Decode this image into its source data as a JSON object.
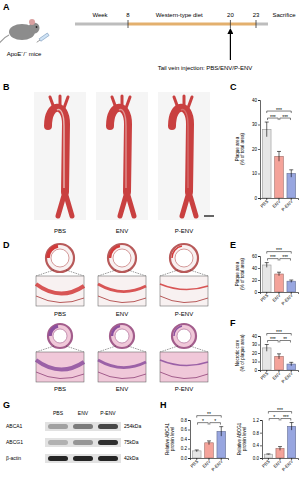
{
  "figure": {
    "panel_labels": [
      "A",
      "B",
      "C",
      "D",
      "E",
      "F",
      "G",
      "H"
    ],
    "schematic": {
      "subject": "ApoE⁻/⁻ mice",
      "axis_label": "Week",
      "weeks": [
        8,
        20,
        23
      ],
      "phase": "Western-type diet",
      "endpoint": "Sacrifice",
      "treatment": "Tail vein injection: PBS/ENV/P-ENV"
    },
    "aorta_groups": [
      "PBS",
      "ENV",
      "P-ENV"
    ],
    "histology_groups": [
      "PBS",
      "ENV",
      "P-ENV"
    ],
    "blot": {
      "groups": [
        "PBS",
        "ENV",
        "P-ENV"
      ],
      "proteins": [
        "ABCA1",
        "ABCG1",
        "β-actin"
      ],
      "sizes": [
        "254kDa",
        "75kDa",
        "42kDa"
      ]
    }
  },
  "chart_data": [
    {
      "type": "bar",
      "y_label": "Plaque area (% of total area)",
      "categories": [
        "PBS",
        "ENV",
        "P-ENV"
      ],
      "values": [
        28,
        17,
        10
      ],
      "errors": [
        3,
        2,
        1.5
      ],
      "colors": [
        "#e6e6e6",
        "#f4a39a",
        "#98a6e0"
      ],
      "ylim": [
        0,
        40
      ],
      "yticks": [
        0,
        10,
        20,
        30,
        40
      ],
      "annotations": [
        {
          "text": "***",
          "between": [
            0,
            1
          ]
        },
        {
          "text": "***",
          "between": [
            1,
            2
          ]
        },
        {
          "text": "***",
          "between": [
            0,
            2
          ]
        }
      ]
    },
    {
      "type": "bar",
      "y_label": "Plaque area (% of total area)",
      "categories": [
        "PBS",
        "ENV",
        "P-ENV"
      ],
      "values": [
        45,
        30,
        18
      ],
      "errors": [
        4,
        3,
        2
      ],
      "colors": [
        "#e6e6e6",
        "#f4a39a",
        "#98a6e0"
      ],
      "ylim": [
        0,
        60
      ],
      "yticks": [
        0,
        20,
        40,
        60
      ],
      "annotations": [
        {
          "text": "***",
          "between": [
            0,
            1
          ]
        },
        {
          "text": "***",
          "between": [
            1,
            2
          ]
        },
        {
          "text": "***",
          "between": [
            0,
            2
          ]
        }
      ]
    },
    {
      "type": "bar",
      "y_label": "Necrotic core (% of plaque area)",
      "categories": [
        "PBS",
        "ENV",
        "P-ENV"
      ],
      "values": [
        26,
        16,
        7
      ],
      "errors": [
        4,
        3,
        2
      ],
      "colors": [
        "#e6e6e6",
        "#f4a39a",
        "#98a6e0"
      ],
      "ylim": [
        0,
        40
      ],
      "yticks": [
        0,
        10,
        20,
        30,
        40
      ],
      "annotations": [
        {
          "text": "***",
          "between": [
            0,
            1
          ]
        },
        {
          "text": "**",
          "between": [
            1,
            2
          ]
        },
        {
          "text": "***",
          "between": [
            0,
            2
          ]
        }
      ]
    },
    {
      "type": "bar",
      "y_label": "Relative ABCA1 protein level",
      "categories": [
        "PBS",
        "ENV",
        "P-ENV"
      ],
      "values": [
        0.15,
        0.32,
        0.56
      ],
      "errors": [
        0.02,
        0.04,
        0.1
      ],
      "colors": [
        "#e6e6e6",
        "#f4a39a",
        "#98a6e0"
      ],
      "ylim": [
        0,
        0.8
      ],
      "yticks": [
        {
          "value": 0,
          "label": "0.0"
        },
        0.2,
        0.4,
        0.6,
        0.8
      ],
      "annotations": [
        {
          "text": "*",
          "between": [
            0,
            1
          ]
        },
        {
          "text": "*",
          "between": [
            1,
            2
          ]
        },
        {
          "text": "**",
          "between": [
            0,
            2
          ]
        }
      ]
    },
    {
      "type": "bar",
      "y_label": "Relative ABCG1 protein level",
      "categories": [
        "PBS",
        "ENV",
        "P-ENV"
      ],
      "values": [
        0.12,
        0.3,
        1.0
      ],
      "errors": [
        0.01,
        0.06,
        0.12
      ],
      "colors": [
        "#e6e6e6",
        "#f4a39a",
        "#98a6e0"
      ],
      "ylim": [
        0,
        1.2
      ],
      "yticks": [
        {
          "value": 0,
          "label": "0.0"
        },
        0.4,
        0.8,
        1.2
      ],
      "annotations": [
        {
          "text": "*",
          "between": [
            0,
            1
          ]
        },
        {
          "text": "***",
          "between": [
            1,
            2
          ]
        },
        {
          "text": "***",
          "between": [
            0,
            2
          ]
        }
      ]
    }
  ]
}
